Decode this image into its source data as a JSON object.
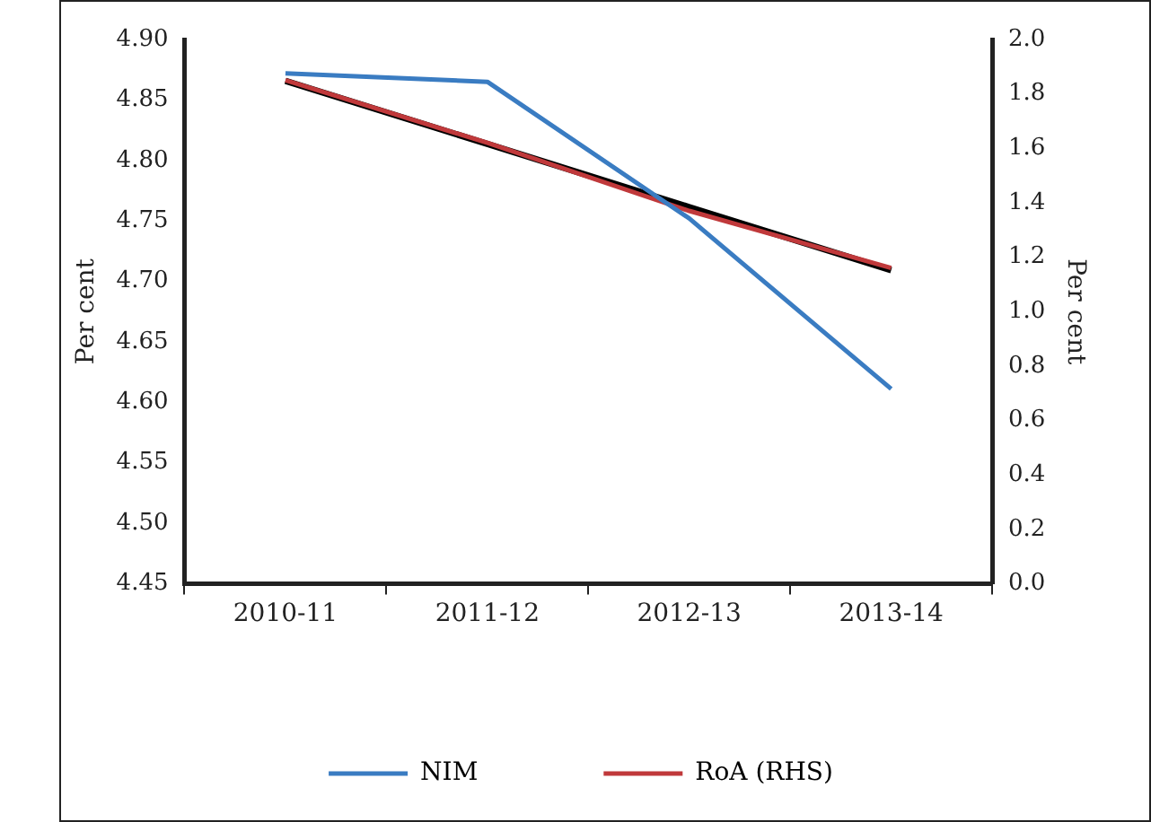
{
  "chart_data": {
    "type": "line",
    "categories": [
      "2010-11",
      "2011-12",
      "2012-13",
      "2013-14"
    ],
    "series": [
      {
        "name": "NIM",
        "color": "#3a7cc2",
        "values": [
          4.872,
          4.865,
          4.752,
          4.611
        ]
      },
      {
        "name": "RoA (RHS)",
        "color": "#c0393b",
        "values": [
          1.85,
          1.62,
          1.37,
          1.16
        ],
        "axis": "y2"
      },
      {
        "type": "line",
        "color": "#000000",
        "values": [
          1.848,
          1.616,
          1.384,
          1.152
        ],
        "axis": "y2"
      }
    ],
    "ylabel": "Per cent",
    "y2label": "Per cent",
    "ylim": [
      4.45,
      4.9
    ],
    "yticks": [
      {
        "value": 4.45,
        "label": "4.45"
      },
      {
        "value": 4.5,
        "label": "4.50"
      },
      {
        "value": 4.55,
        "label": "4.55"
      },
      {
        "value": 4.6,
        "label": "4.60"
      },
      {
        "value": 4.65,
        "label": "4.65"
      },
      {
        "value": 4.7,
        "label": "4.70"
      },
      {
        "value": 4.75,
        "label": "4.75"
      },
      {
        "value": 4.8,
        "label": "4.80"
      },
      {
        "value": 4.85,
        "label": "4.85"
      },
      {
        "value": 4.9,
        "label": "4.90"
      }
    ],
    "y2lim": [
      0,
      2
    ],
    "y2ticks": [
      {
        "value": 0,
        "label": "0.0"
      },
      {
        "value": 0.2,
        "label": "0.2"
      },
      {
        "value": 0.4,
        "label": "0.4"
      },
      {
        "value": 0.6,
        "label": "0.6"
      },
      {
        "value": 0.8,
        "label": "0.8"
      },
      {
        "value": 1,
        "label": "1.0"
      },
      {
        "value": 1.2,
        "label": "1.2"
      },
      {
        "value": 1.4,
        "label": "1.4"
      },
      {
        "value": 1.6,
        "label": "1.6"
      },
      {
        "value": 1.8,
        "label": "1.8"
      },
      {
        "value": 2,
        "label": "2.0"
      }
    ],
    "grid": false,
    "legend": "bottom",
    "marker": "none",
    "line_style": "solid"
  }
}
